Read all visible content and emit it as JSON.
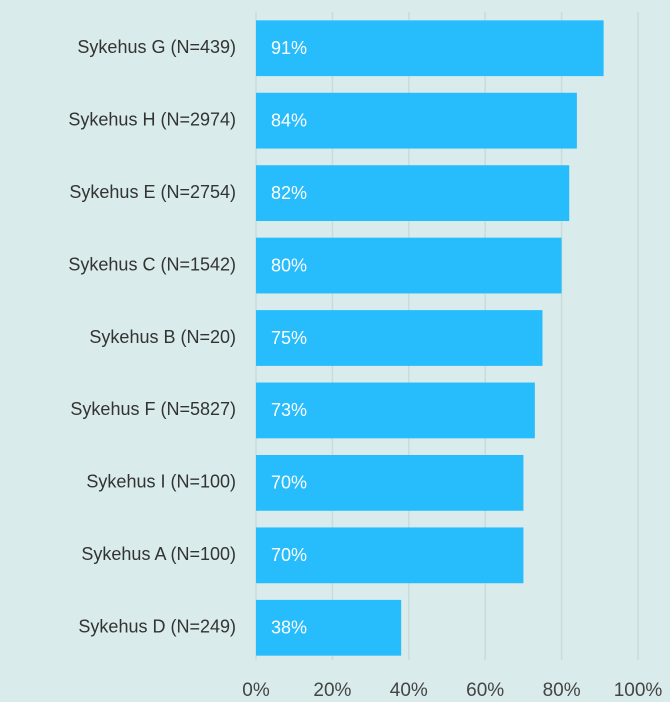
{
  "chart_data": {
    "type": "bar",
    "orientation": "horizontal",
    "categories": [
      "Sykehus G (N=439)",
      "Sykehus H (N=2974)",
      "Sykehus E (N=2754)",
      "Sykehus C (N=1542)",
      "Sykehus B (N=20)",
      "Sykehus F (N=5827)",
      "Sykehus I (N=100)",
      "Sykehus A (N=100)",
      "Sykehus D (N=249)"
    ],
    "values": [
      91,
      84,
      82,
      80,
      75,
      73,
      70,
      70,
      38
    ],
    "value_labels": [
      "91%",
      "84%",
      "82%",
      "80%",
      "75%",
      "73%",
      "70%",
      "70%",
      "38%"
    ],
    "color": "#27bdfd",
    "xlim": [
      0,
      100
    ],
    "xticks": [
      {
        "value": 0,
        "label": "0%"
      },
      {
        "value": 20,
        "label": "20%"
      },
      {
        "value": 40,
        "label": "40%"
      },
      {
        "value": 60,
        "label": "60%"
      },
      {
        "value": 80,
        "label": "80%"
      },
      {
        "value": 100,
        "label": "100%"
      }
    ],
    "grid": true
  }
}
